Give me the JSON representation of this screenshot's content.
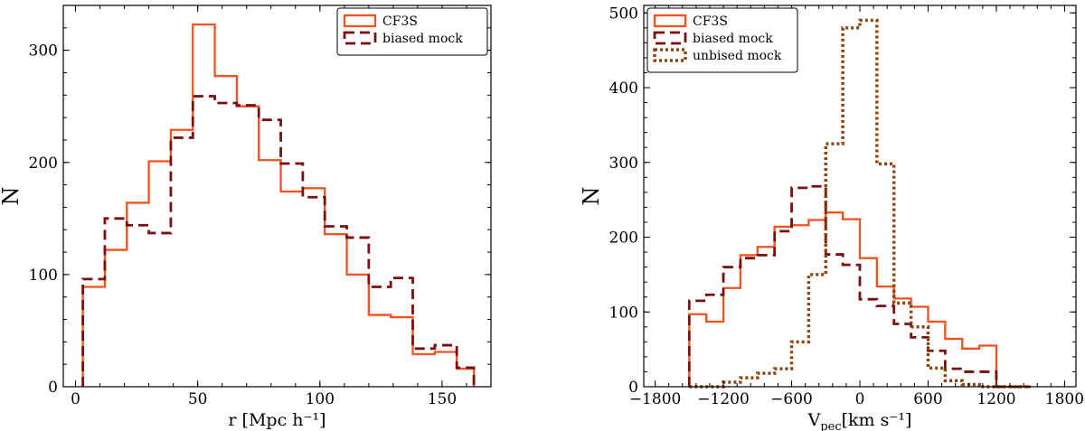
{
  "chart_data": [
    {
      "type": "histogram",
      "xlabel": "r [Mpc h⁻¹]",
      "ylabel": "N",
      "xlim": [
        -5,
        170
      ],
      "ylim": [
        0,
        340
      ],
      "xticks": [
        0,
        50,
        100,
        150
      ],
      "yticks": [
        0,
        100,
        200,
        300
      ],
      "grid": false,
      "legend_position": "top-right",
      "bin_edges": [
        3,
        12,
        21,
        30,
        39,
        48,
        57,
        66,
        75,
        84,
        93,
        102,
        111,
        120,
        129,
        138,
        147,
        156,
        163
      ],
      "series": [
        {
          "name": "CF3S",
          "style": "solid",
          "color": "#f4511e",
          "values": [
            89,
            122,
            164,
            201,
            229,
            323,
            277,
            250,
            202,
            174,
            177,
            136,
            100,
            64,
            62,
            29,
            31,
            16
          ]
        },
        {
          "name": "biased mock",
          "style": "dashed",
          "color": "#7b0f0f",
          "values": [
            96,
            150,
            144,
            137,
            222,
            259,
            253,
            251,
            238,
            199,
            169,
            143,
            133,
            89,
            97,
            34,
            37,
            17
          ]
        }
      ]
    },
    {
      "type": "histogram",
      "xlabel_main": "V",
      "xlabel_sub": "pec",
      "xlabel_units": "[km s⁻¹]",
      "ylabel": "N",
      "xlim": [
        -1900,
        1900
      ],
      "ylim": [
        0,
        510
      ],
      "xticks": [
        -1800,
        -1200,
        -600,
        0,
        600,
        1200,
        1800
      ],
      "xtick_labels": [
        "−1800",
        "−1200",
        "−600",
        "0",
        "600",
        "1200",
        "1800"
      ],
      "yticks": [
        0,
        100,
        200,
        300,
        400,
        500
      ],
      "grid": false,
      "legend_position": "top-left",
      "bin_edges": [
        -1500,
        -1350,
        -1200,
        -1050,
        -900,
        -750,
        -600,
        -450,
        -300,
        -150,
        0,
        150,
        300,
        450,
        600,
        750,
        900,
        1050,
        1200,
        1350,
        1500
      ],
      "series": [
        {
          "name": "CF3S",
          "style": "solid",
          "color": "#f4511e",
          "values": [
            97,
            87,
            132,
            176,
            187,
            214,
            216,
            223,
            233,
            224,
            172,
            134,
            118,
            107,
            87,
            64,
            51,
            55,
            0,
            0
          ]
        },
        {
          "name": "biased mock",
          "style": "dashed",
          "color": "#7b0f0f",
          "values": [
            115,
            123,
            160,
            172,
            176,
            208,
            266,
            268,
            177,
            163,
            117,
            108,
            84,
            66,
            48,
            24,
            20,
            20,
            0,
            0
          ]
        },
        {
          "name": "unbised mock",
          "style": "dotted",
          "color": "#8b4513",
          "values": [
            0,
            0,
            6,
            12,
            18,
            24,
            60,
            150,
            325,
            480,
            490,
            298,
            112,
            80,
            25,
            8,
            3,
            0,
            0,
            0
          ]
        }
      ]
    }
  ]
}
